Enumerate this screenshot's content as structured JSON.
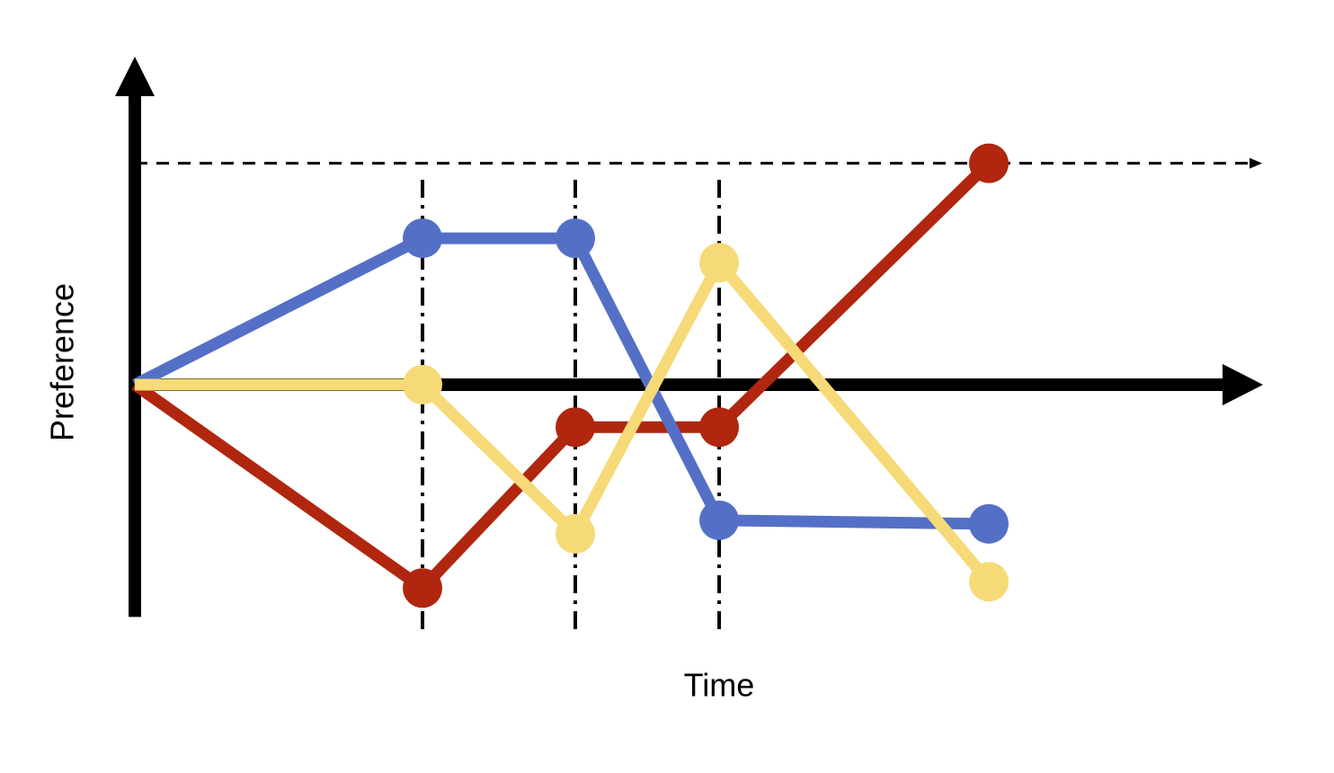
{
  "chart_data": {
    "type": "line",
    "x_label": "Time",
    "y_label": "Preference",
    "x": [
      0,
      3.2,
      4.9,
      6.5,
      9.5
    ],
    "series": [
      {
        "color": "#b0260f",
        "values": [
          0,
          -2.25,
          -0.47,
          -0.47,
          2.45
        ]
      },
      {
        "color": "#5470c6",
        "values": [
          0,
          1.62,
          1.62,
          -1.5,
          -1.54
        ]
      },
      {
        "color": "#f6da78",
        "values": [
          0,
          0,
          -1.65,
          1.35,
          -2.18
        ]
      }
    ],
    "xlim": [
      0,
      12.55
    ],
    "ylim": [
      -2.57,
      3.63
    ],
    "threshold_y": 2.45,
    "marker_x": [
      3.2,
      4.9,
      6.5
    ]
  }
}
